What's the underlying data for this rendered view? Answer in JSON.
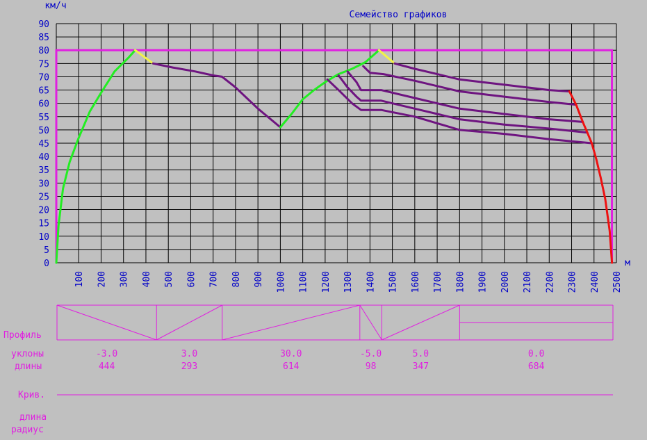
{
  "colors": {
    "background": "#c0c0c0",
    "grid": "#000000",
    "axis_text": "#0000c8",
    "frame": "#e020e0",
    "profile": "#e020e0",
    "accel": "#22ee22",
    "transition": "#f2f24a",
    "coast": "#6e1480",
    "brake": "#ee1111"
  },
  "chart_data": {
    "type": "line",
    "title": "Семейство графиков",
    "ylabel": "км/ч",
    "xlabel": "м",
    "xlim": [
      0,
      2500
    ],
    "ylim": [
      0,
      90
    ],
    "xticks": [
      100,
      200,
      300,
      400,
      500,
      600,
      700,
      800,
      900,
      1000,
      1100,
      1200,
      1300,
      1400,
      1500,
      1600,
      1700,
      1800,
      1900,
      2000,
      2100,
      2200,
      2300,
      2400,
      2500
    ],
    "yticks": [
      0,
      5,
      10,
      15,
      20,
      25,
      30,
      35,
      40,
      45,
      50,
      55,
      60,
      65,
      70,
      75,
      80,
      85,
      90
    ],
    "speed_limit": 80,
    "speed_limit_x": [
      0,
      2480
    ],
    "series": [
      {
        "mode": "accel",
        "points": [
          [
            0,
            0
          ],
          [
            10,
            14
          ],
          [
            30,
            28
          ],
          [
            60,
            38
          ],
          [
            100,
            47
          ],
          [
            150,
            57
          ],
          [
            200,
            64
          ],
          [
            260,
            72
          ],
          [
            320,
            77
          ],
          [
            352,
            80
          ]
        ]
      },
      {
        "mode": "transition",
        "points": [
          [
            352,
            80
          ],
          [
            432,
            75
          ]
        ]
      },
      {
        "mode": "coast",
        "points": [
          [
            432,
            75
          ],
          [
            520,
            73.5
          ],
          [
            620,
            72
          ],
          [
            700,
            70.5
          ],
          [
            740,
            70
          ],
          [
            800,
            66
          ],
          [
            900,
            58
          ],
          [
            1000,
            51
          ]
        ]
      },
      {
        "mode": "accel",
        "points": [
          [
            1000,
            51
          ],
          [
            1050,
            56
          ],
          [
            1100,
            61.5
          ],
          [
            1150,
            65
          ],
          [
            1200,
            68
          ],
          [
            1260,
            71
          ],
          [
            1320,
            73
          ],
          [
            1380,
            75.5
          ],
          [
            1420,
            78.5
          ],
          [
            1440,
            80
          ]
        ]
      },
      {
        "mode": "transition",
        "points": [
          [
            1440,
            80
          ],
          [
            1510,
            75
          ]
        ]
      },
      {
        "mode": "coast",
        "points": [
          [
            1510,
            75
          ],
          [
            1600,
            73
          ],
          [
            1700,
            71
          ],
          [
            1800,
            69
          ],
          [
            1900,
            68
          ],
          [
            2000,
            67
          ],
          [
            2100,
            66
          ],
          [
            2200,
            65
          ],
          [
            2290,
            64.5
          ]
        ]
      },
      {
        "mode": "coast",
        "points": [
          [
            1370,
            74
          ],
          [
            1400,
            71.5
          ],
          [
            1460,
            71
          ],
          [
            1600,
            68.5
          ],
          [
            1800,
            64.5
          ],
          [
            2000,
            62.5
          ],
          [
            2200,
            60.5
          ],
          [
            2320,
            59.5
          ]
        ]
      },
      {
        "mode": "coast",
        "points": [
          [
            1300,
            72
          ],
          [
            1340,
            68
          ],
          [
            1360,
            65
          ],
          [
            1450,
            65
          ],
          [
            1600,
            62
          ],
          [
            1800,
            58
          ],
          [
            2000,
            56
          ],
          [
            2200,
            54
          ],
          [
            2350,
            53
          ]
        ]
      },
      {
        "mode": "coast",
        "points": [
          [
            1260,
            70.5
          ],
          [
            1300,
            66
          ],
          [
            1340,
            62.5
          ],
          [
            1360,
            61
          ],
          [
            1450,
            61
          ],
          [
            1600,
            58
          ],
          [
            1800,
            54
          ],
          [
            2000,
            52
          ],
          [
            2200,
            50.5
          ],
          [
            2370,
            49
          ]
        ]
      },
      {
        "mode": "coast",
        "points": [
          [
            1210,
            69
          ],
          [
            1260,
            65
          ],
          [
            1320,
            60
          ],
          [
            1360,
            57.5
          ],
          [
            1450,
            57.5
          ],
          [
            1600,
            55
          ],
          [
            1800,
            50
          ],
          [
            2000,
            48.5
          ],
          [
            2200,
            46.5
          ],
          [
            2390,
            45
          ]
        ]
      },
      {
        "mode": "brake",
        "points": [
          [
            2290,
            64.5
          ],
          [
            2320,
            59.5
          ],
          [
            2350,
            53
          ],
          [
            2370,
            49
          ],
          [
            2390,
            45
          ],
          [
            2410,
            39
          ],
          [
            2430,
            32
          ],
          [
            2450,
            24
          ],
          [
            2470,
            12
          ],
          [
            2480,
            0
          ]
        ]
      }
    ],
    "profile": {
      "label": "Профиль",
      "slopes_label": "уклоны",
      "lengths_label": "длины",
      "segments": [
        {
          "slope": "-3.0",
          "length": "444",
          "shape": "down"
        },
        {
          "slope": "3.0",
          "length": "293",
          "shape": "up"
        },
        {
          "slope": "30.0",
          "length": "614",
          "shape": "up"
        },
        {
          "slope": "-5.0",
          "length": "98",
          "shape": "down"
        },
        {
          "slope": "5.0",
          "length": "347",
          "shape": "up"
        },
        {
          "slope": "0.0",
          "length": "684",
          "shape": "flat"
        }
      ]
    },
    "curves": {
      "label": "Крив.",
      "length_label": "длина",
      "radius_label": "радиус"
    }
  }
}
